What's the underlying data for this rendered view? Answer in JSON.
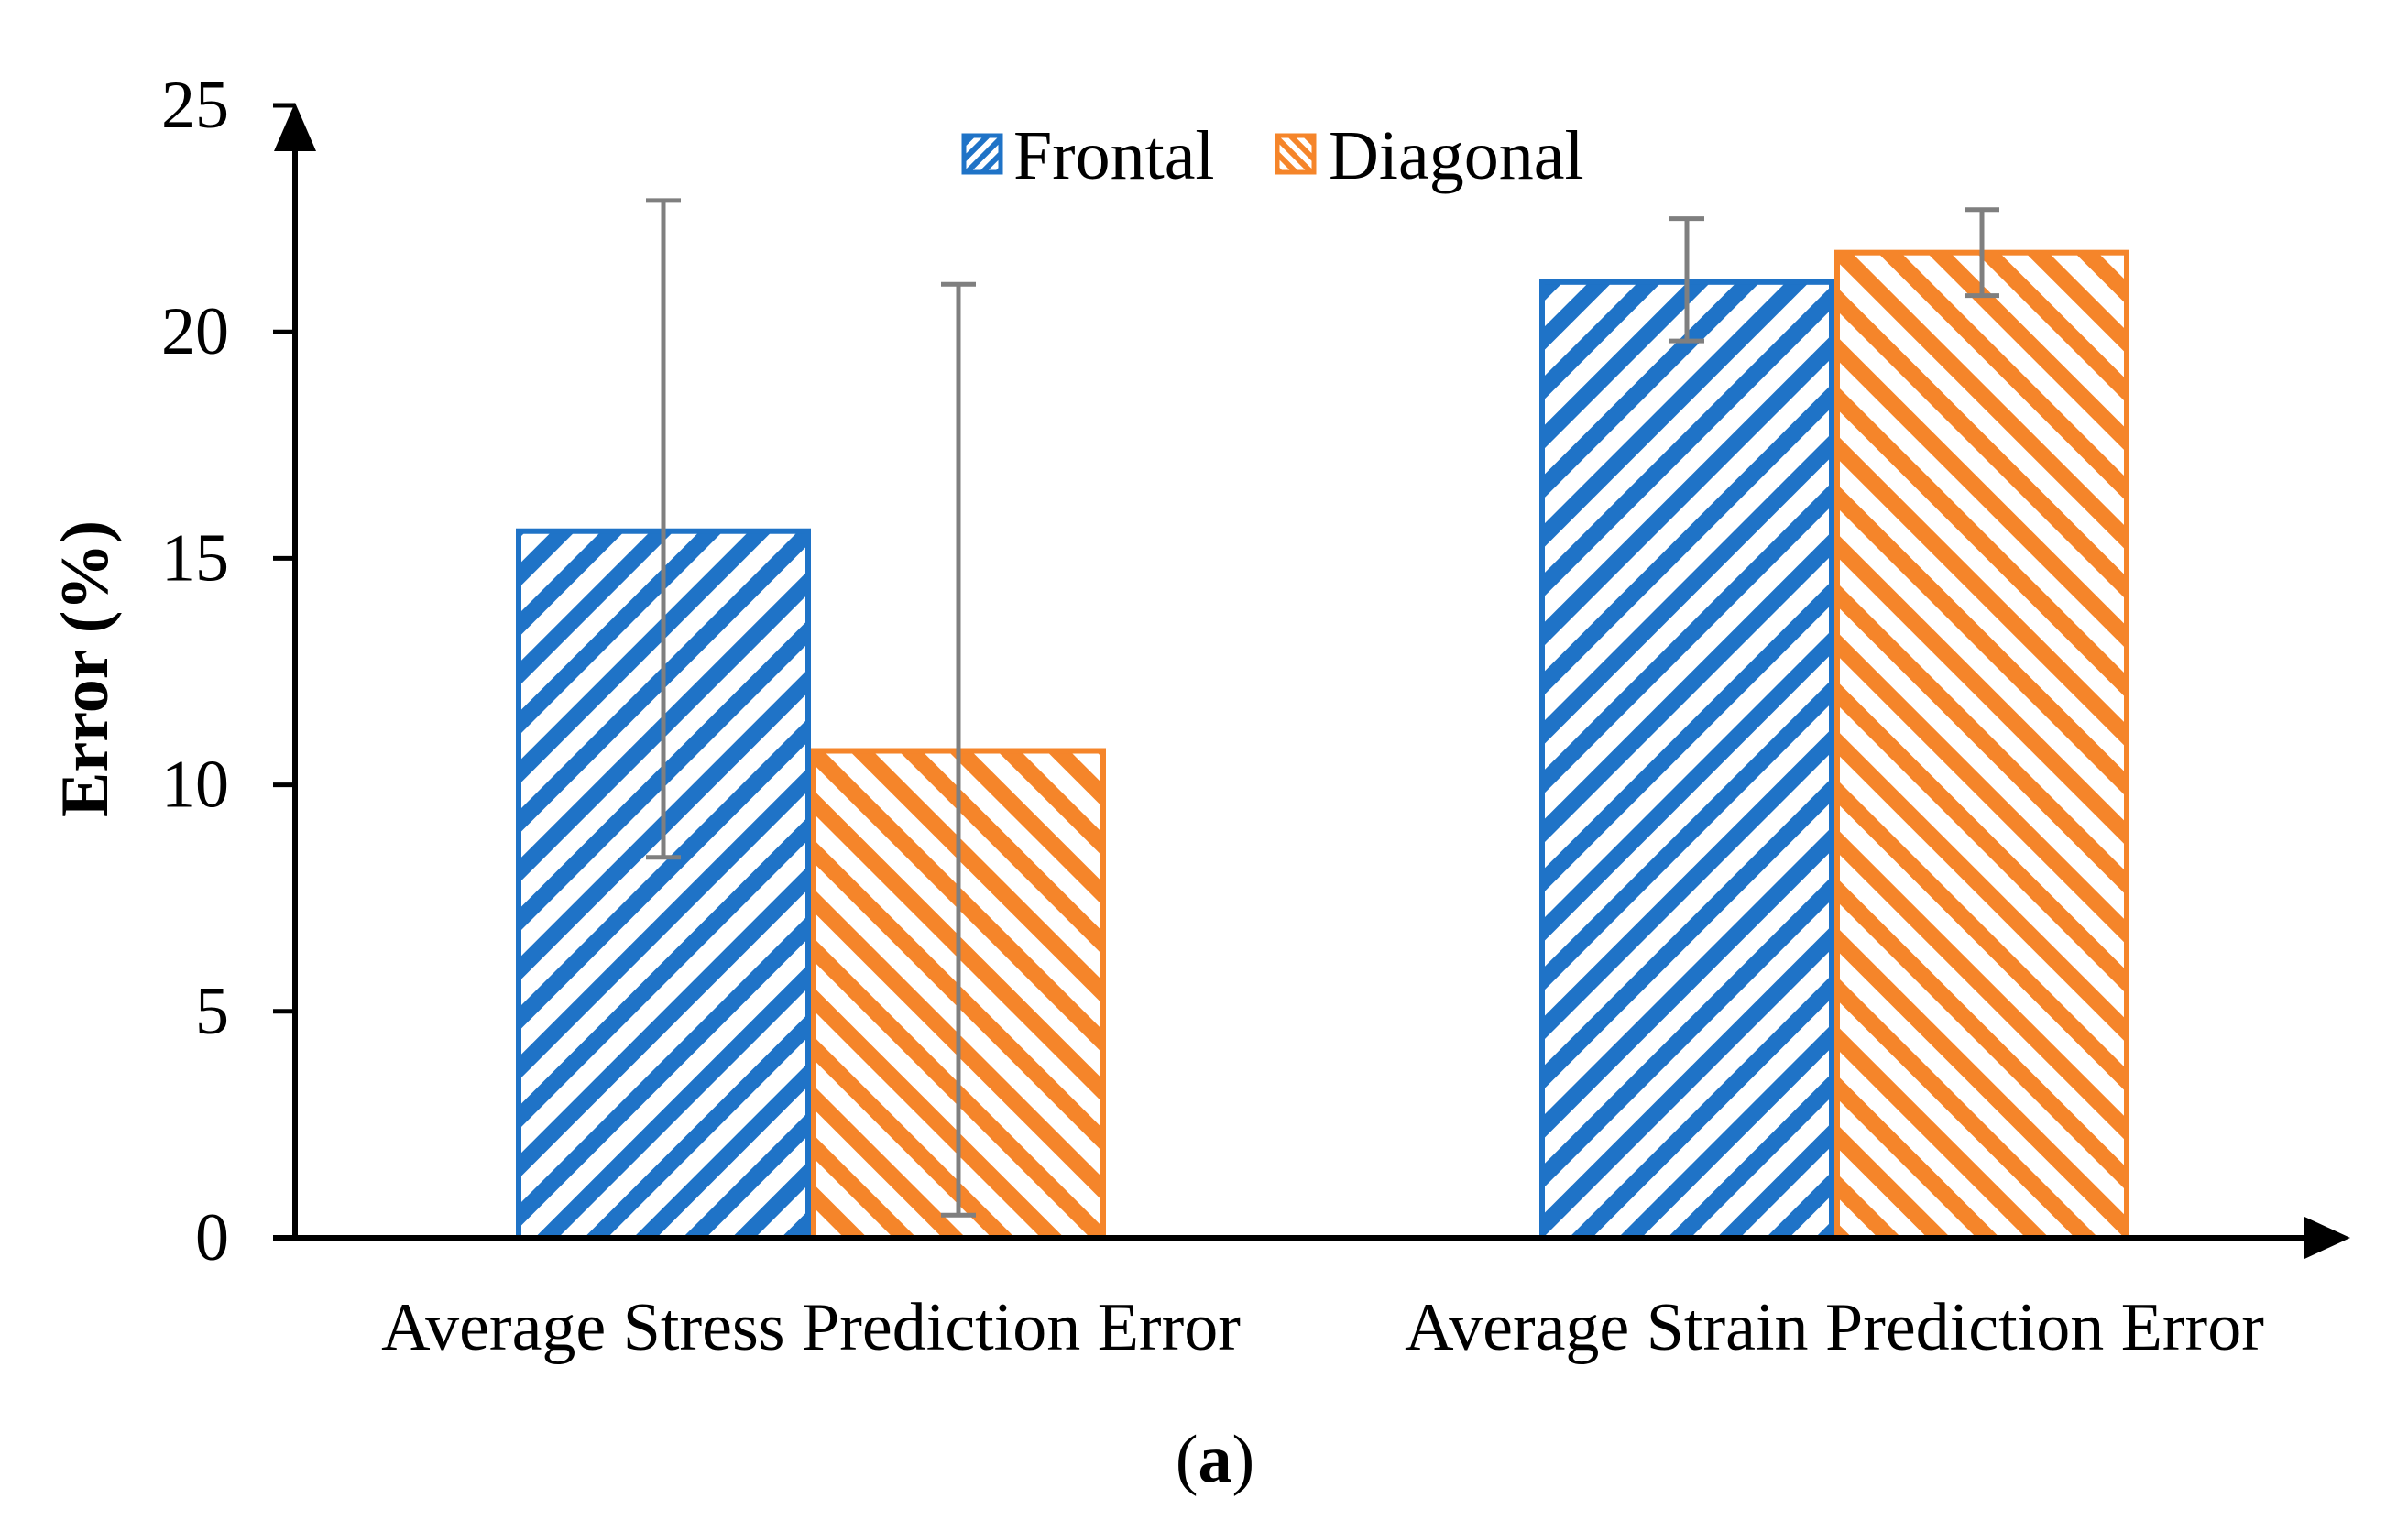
{
  "chart_data": {
    "type": "bar",
    "title": "",
    "xlabel": "",
    "ylabel": "Error (%)",
    "ylim": [
      0,
      25
    ],
    "yticks": [
      0,
      5,
      10,
      15,
      20,
      25
    ],
    "categories": [
      "Average Stress Prediction Error",
      "Average Strain Prediction Error"
    ],
    "series": [
      {
        "name": "Frontal",
        "color": "#1f73c7",
        "pattern": "diagonal-down",
        "values": [
          15.6,
          21.1
        ],
        "error_low": [
          8.4,
          19.8
        ],
        "error_high": [
          22.9,
          22.5
        ]
      },
      {
        "name": "Diagonal",
        "color": "#f5852a",
        "pattern": "diagonal-up",
        "values": [
          10.75,
          21.75
        ],
        "error_low": [
          0.5,
          20.8
        ],
        "error_high": [
          21.05,
          22.7
        ]
      }
    ],
    "error_bar_color": "#7f7f7f",
    "legend_position": "top-center",
    "grid": false
  },
  "caption": {
    "open": "(",
    "label": "a",
    "close": ")"
  }
}
